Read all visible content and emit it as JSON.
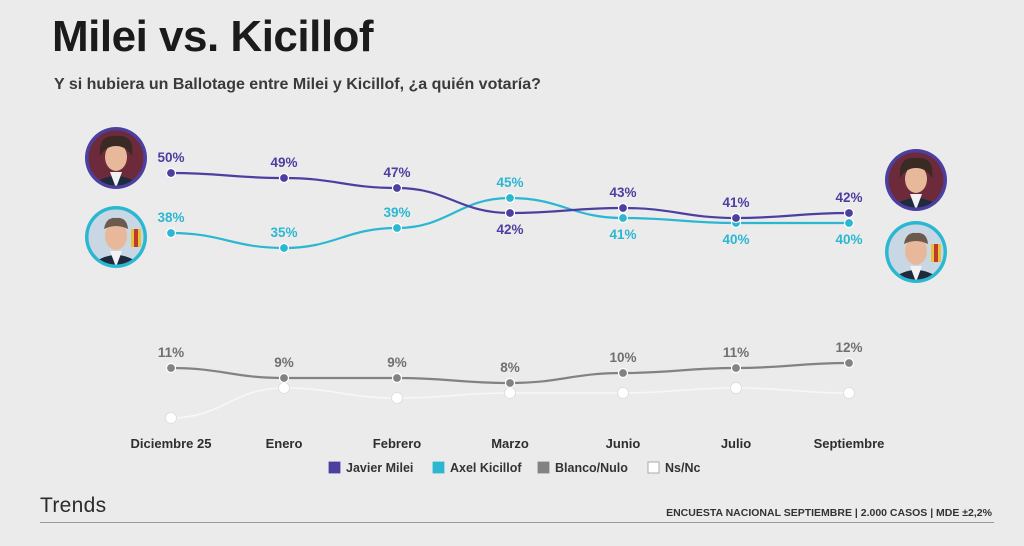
{
  "header": {
    "title": "Milei vs. Kicillof",
    "subtitle": "Y si hubiera un Ballotage entre Milei y Kicillof, ¿a quién votaría?"
  },
  "footer": {
    "brand": "Trends",
    "source": "ENCUESTA NACIONAL SEPTIEMBRE | 2.000 CASOS | MDE ±2,2%"
  },
  "colors": {
    "milei": "#4b3fa0",
    "kicillof": "#2bb7d2",
    "blanco": "#828282",
    "nsnc": "#ffffff"
  },
  "chart_data": {
    "type": "line",
    "categories": [
      "Diciembre 25",
      "Enero",
      "Febrero",
      "Marzo",
      "Junio",
      "Julio",
      "Septiembre"
    ],
    "series": [
      {
        "name": "Javier Milei",
        "values": [
          50,
          49,
          47,
          42,
          43,
          41,
          42
        ],
        "labels": [
          "50%",
          "49%",
          "47%",
          "42%",
          "43%",
          "41%",
          "42%"
        ]
      },
      {
        "name": "Axel Kicillof",
        "values": [
          38,
          35,
          39,
          45,
          41,
          40,
          40
        ],
        "labels": [
          "38%",
          "35%",
          "39%",
          "45%",
          "41%",
          "40%",
          "40%"
        ]
      },
      {
        "name": "Blanco/Nulo",
        "values": [
          11,
          9,
          9,
          8,
          10,
          11,
          12
        ],
        "labels": [
          "11%",
          "9%",
          "9%",
          "8%",
          "10%",
          "11%",
          "12%"
        ]
      },
      {
        "name": "Ns/Nc",
        "values": [
          1,
          7,
          5,
          6,
          6,
          7,
          6
        ]
      }
    ],
    "legend": {
      "position": "bottom-center"
    },
    "grid": false
  }
}
